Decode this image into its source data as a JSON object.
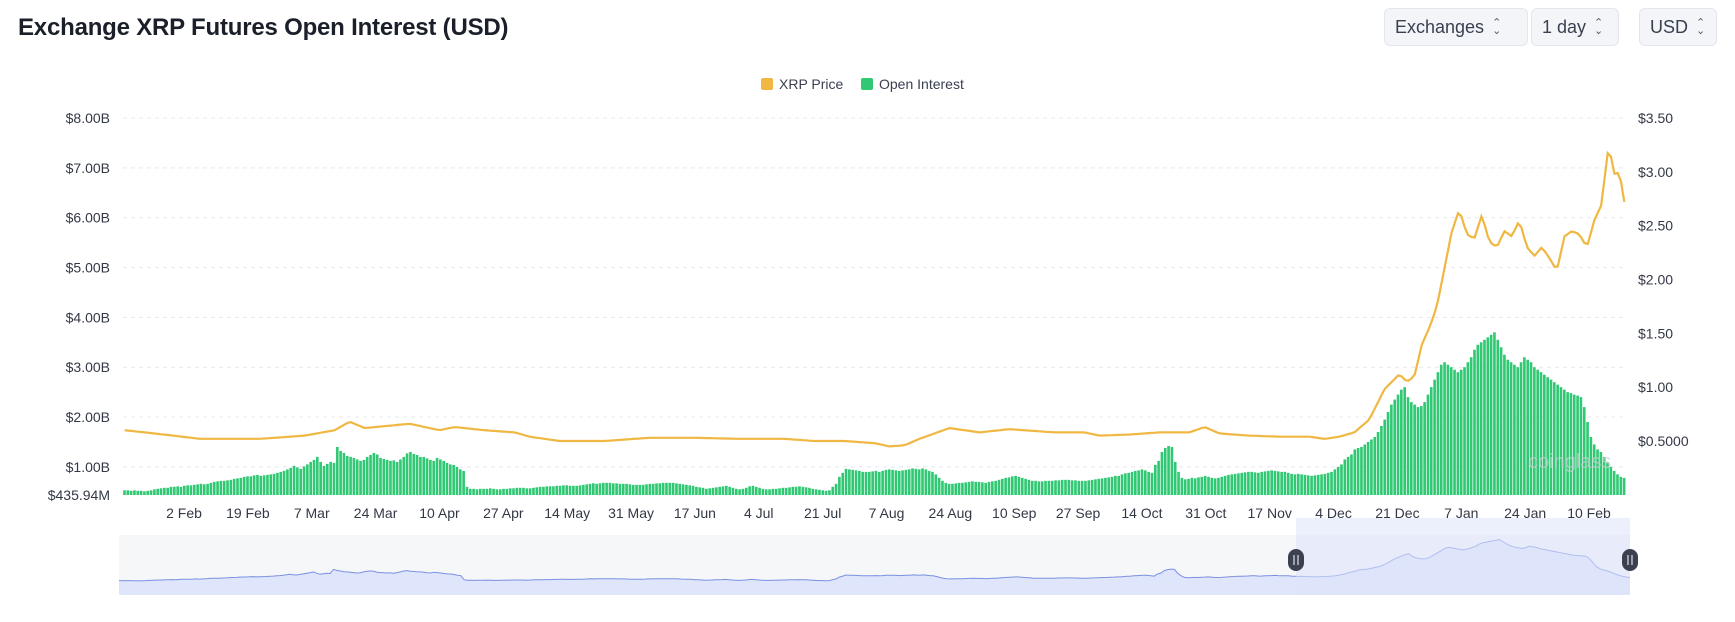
{
  "header": {
    "title": "Exchange XRP Futures Open Interest (USD)",
    "exchanges_select": "Exchanges",
    "interval_select": "1 day",
    "currency_select": "USD"
  },
  "colors": {
    "price": "#f0b742",
    "open_interest": "#30c873",
    "grid": "#e6e8ec",
    "navigator_fill": "#dfe6fb",
    "navigator_line": "#7b90e0",
    "navigator_window": "#dde4fb"
  },
  "watermark": "coinglass",
  "chart_data": {
    "type": "bar",
    "title": "Exchange XRP Futures Open Interest (USD)",
    "legend": [
      "XRP Price",
      "Open Interest"
    ],
    "legend_position": "top-center",
    "grid": true,
    "x_ticks": [
      "2 Feb",
      "19 Feb",
      "7 Mar",
      "24 Mar",
      "10 Apr",
      "27 Apr",
      "14 May",
      "31 May",
      "17 Jun",
      "4 Jul",
      "21 Jul",
      "7 Aug",
      "24 Aug",
      "10 Sep",
      "27 Sep",
      "14 Oct",
      "31 Oct",
      "17 Nov",
      "4 Dec",
      "21 Dec",
      "7 Jan",
      "24 Jan",
      "10 Feb"
    ],
    "y_left_ticks": [
      "$8.00B",
      "$7.00B",
      "$6.00B",
      "$5.00B",
      "$4.00B",
      "$3.00B",
      "$2.00B",
      "$1.00B",
      "$435.94M"
    ],
    "y_left_ticks_values": [
      8.0,
      7.0,
      6.0,
      5.0,
      4.0,
      3.0,
      2.0,
      1.0,
      0.43594
    ],
    "y_right_ticks": [
      "$3.50",
      "$3.00",
      "$2.50",
      "$2.00",
      "$1.50",
      "$1.00",
      "$0.5000"
    ],
    "y_right_ticks_values": [
      3.5,
      3.0,
      2.5,
      2.0,
      1.5,
      1.0,
      0.5
    ],
    "y_left_range_B": [
      0.43594,
      8.0
    ],
    "y_right_range_usd": [
      0.0,
      3.5
    ],
    "x_range_days": [
      0,
      413
    ],
    "series": [
      {
        "name": "Open Interest",
        "type": "bar",
        "axis": "left",
        "unit": "billion USD",
        "points": [
          [
            0,
            0.53
          ],
          [
            8,
            0.6
          ],
          [
            20,
            0.65
          ],
          [
            30,
            0.71
          ],
          [
            40,
            0.76
          ],
          [
            45,
            0.82
          ],
          [
            50,
            0.9
          ],
          [
            55,
            0.99
          ],
          [
            58,
            1.05
          ],
          [
            62,
            1.0
          ],
          [
            64,
            1.35
          ],
          [
            67,
            1.18
          ],
          [
            70,
            1.1
          ],
          [
            75,
            1.15
          ],
          [
            78,
            1.05
          ],
          [
            80,
            1.0
          ],
          [
            82,
            1.05
          ],
          [
            90,
            0.98
          ],
          [
            100,
            1.0
          ],
          [
            106,
            1.05
          ],
          [
            112,
            1.02
          ],
          [
            120,
            1.02
          ],
          [
            126,
            0.85
          ],
          [
            128,
            0.55
          ],
          [
            135,
            0.55
          ],
          [
            140,
            0.52
          ],
          [
            145,
            0.53
          ],
          [
            150,
            0.56
          ],
          [
            165,
            0.62
          ],
          [
            180,
            0.67
          ],
          [
            190,
            0.65
          ],
          [
            195,
            0.55
          ],
          [
            200,
            0.57
          ],
          [
            210,
            0.6
          ],
          [
            220,
            0.62
          ],
          [
            232,
            0.58
          ],
          [
            240,
            0.55
          ],
          [
            245,
            0.7
          ],
          [
            250,
            0.9
          ],
          [
            260,
            0.95
          ],
          [
            270,
            0.96
          ],
          [
            278,
            0.8
          ],
          [
            285,
            0.68
          ],
          [
            300,
            0.73
          ],
          [
            320,
            0.79
          ],
          [
            335,
            0.74
          ],
          [
            345,
            0.8
          ],
          [
            355,
            0.9
          ],
          [
            365,
            0.98
          ],
          [
            378,
            1.15
          ],
          [
            380,
            1.3
          ],
          [
            376,
            1.0
          ],
          [
            372,
            0.9
          ],
          [
            385,
            1.05
          ],
          [
            390,
            0.9
          ],
          [
            400,
            0.85
          ],
          [
            410,
            0.9
          ]
        ],
        "note": "approximate; full daily values listed in detail_bars"
      },
      {
        "name": "XRP Price",
        "type": "line",
        "axis": "right",
        "unit": "USD"
      }
    ],
    "detail_bars_B": [
      0.53,
      0.53,
      0.52,
      0.53,
      0.52,
      0.52,
      0.51,
      0.52,
      0.53,
      0.55,
      0.56,
      0.57,
      0.58,
      0.58,
      0.6,
      0.6,
      0.61,
      0.6,
      0.62,
      0.63,
      0.63,
      0.64,
      0.65,
      0.66,
      0.65,
      0.66,
      0.68,
      0.7,
      0.71,
      0.72,
      0.72,
      0.73,
      0.74,
      0.76,
      0.77,
      0.78,
      0.8,
      0.81,
      0.81,
      0.83,
      0.84,
      0.82,
      0.83,
      0.84,
      0.85,
      0.86,
      0.88,
      0.9,
      0.92,
      0.95,
      0.98,
      1.02,
      0.99,
      0.96,
      1.01,
      1.05,
      1.1,
      1.14,
      1.2,
      1.1,
      1.02,
      1.06,
      1.1,
      1.08,
      1.4,
      1.32,
      1.28,
      1.22,
      1.2,
      1.18,
      1.15,
      1.12,
      1.14,
      1.2,
      1.24,
      1.28,
      1.25,
      1.18,
      1.16,
      1.14,
      1.12,
      1.13,
      1.1,
      1.15,
      1.2,
      1.27,
      1.3,
      1.26,
      1.24,
      1.2,
      1.2,
      1.17,
      1.14,
      1.12,
      1.18,
      1.15,
      1.12,
      1.08,
      1.05,
      1.04,
      1.0,
      0.95,
      0.92,
      0.6,
      0.56,
      0.56,
      0.55,
      0.56,
      0.56,
      0.56,
      0.57,
      0.56,
      0.55,
      0.55,
      0.56,
      0.56,
      0.57,
      0.57,
      0.58,
      0.58,
      0.58,
      0.57,
      0.57,
      0.58,
      0.59,
      0.6,
      0.6,
      0.61,
      0.61,
      0.61,
      0.62,
      0.62,
      0.63,
      0.63,
      0.62,
      0.62,
      0.62,
      0.63,
      0.64,
      0.65,
      0.66,
      0.67,
      0.66,
      0.67,
      0.68,
      0.68,
      0.68,
      0.67,
      0.67,
      0.66,
      0.66,
      0.66,
      0.65,
      0.64,
      0.64,
      0.64,
      0.64,
      0.65,
      0.66,
      0.66,
      0.67,
      0.67,
      0.68,
      0.68,
      0.68,
      0.68,
      0.67,
      0.66,
      0.65,
      0.64,
      0.63,
      0.62,
      0.6,
      0.59,
      0.58,
      0.56,
      0.57,
      0.58,
      0.59,
      0.6,
      0.61,
      0.62,
      0.6,
      0.58,
      0.56,
      0.55,
      0.56,
      0.58,
      0.61,
      0.62,
      0.6,
      0.58,
      0.56,
      0.55,
      0.55,
      0.56,
      0.56,
      0.57,
      0.58,
      0.58,
      0.59,
      0.6,
      0.6,
      0.61,
      0.6,
      0.59,
      0.58,
      0.56,
      0.55,
      0.54,
      0.53,
      0.52,
      0.53,
      0.6,
      0.66,
      0.8,
      0.88,
      0.96,
      0.95,
      0.94,
      0.93,
      0.92,
      0.9,
      0.9,
      0.9,
      0.91,
      0.92,
      0.9,
      0.92,
      0.94,
      0.95,
      0.94,
      0.93,
      0.92,
      0.93,
      0.94,
      0.95,
      0.97,
      0.96,
      0.95,
      0.97,
      0.95,
      0.92,
      0.9,
      0.85,
      0.78,
      0.72,
      0.68,
      0.66,
      0.66,
      0.67,
      0.68,
      0.68,
      0.69,
      0.7,
      0.71,
      0.7,
      0.7,
      0.69,
      0.68,
      0.7,
      0.71,
      0.72,
      0.74,
      0.76,
      0.78,
      0.79,
      0.81,
      0.82,
      0.8,
      0.78,
      0.76,
      0.74,
      0.72,
      0.72,
      0.71,
      0.71,
      0.72,
      0.72,
      0.72,
      0.73,
      0.73,
      0.74,
      0.74,
      0.74,
      0.73,
      0.73,
      0.72,
      0.72,
      0.72,
      0.73,
      0.74,
      0.75,
      0.76,
      0.77,
      0.78,
      0.79,
      0.8,
      0.82,
      0.82,
      0.85,
      0.87,
      0.88,
      0.9,
      0.92,
      0.93,
      0.95,
      0.93,
      0.9,
      0.88,
      1.04,
      1.12,
      1.3,
      1.38,
      1.42,
      1.4,
      1.1,
      0.9,
      0.78,
      0.75,
      0.76,
      0.78,
      0.77,
      0.79,
      0.8,
      0.82,
      0.8,
      0.78,
      0.77,
      0.78,
      0.8,
      0.82,
      0.84,
      0.85,
      0.86,
      0.87,
      0.88,
      0.89,
      0.9,
      0.9,
      0.89,
      0.88,
      0.9,
      0.91,
      0.92,
      0.93,
      0.92,
      0.91,
      0.9,
      0.9,
      0.88,
      0.86,
      0.85,
      0.86,
      0.85,
      0.84,
      0.83,
      0.82,
      0.83,
      0.84,
      0.85,
      0.86,
      0.88,
      0.9,
      0.95,
      1.0,
      1.05,
      1.15,
      1.2,
      1.25,
      1.35,
      1.38,
      1.4,
      1.45,
      1.5,
      1.55,
      1.6,
      1.7,
      1.82,
      1.95,
      2.1,
      2.25,
      2.35,
      2.45,
      2.55,
      2.6,
      2.4,
      2.3,
      2.25,
      2.2,
      2.22,
      2.3,
      2.45,
      2.6,
      2.75,
      2.9,
      3.05,
      3.1,
      3.05,
      3.0,
      2.95,
      2.9,
      2.95,
      3.0,
      3.1,
      3.2,
      3.35,
      3.45,
      3.5,
      3.55,
      3.6,
      3.65,
      3.7,
      3.55,
      3.4,
      3.25,
      3.15,
      3.1,
      3.05,
      3.0,
      3.1,
      3.2,
      3.15,
      3.1,
      3.0,
      2.95,
      2.9,
      2.85,
      2.8,
      2.75,
      2.7,
      2.65,
      2.6,
      2.55,
      2.5,
      2.48,
      2.45,
      2.43,
      2.4,
      2.2,
      1.9,
      1.6,
      1.45,
      1.35,
      1.3,
      1.2,
      1.1,
      1.0,
      0.92,
      0.85,
      0.8,
      0.78
    ],
    "note_full": "Open interest bars and XRP price line read approximately from the chart; the navigator at the bottom shows the full history with the selected window highlighted on the right."
  }
}
